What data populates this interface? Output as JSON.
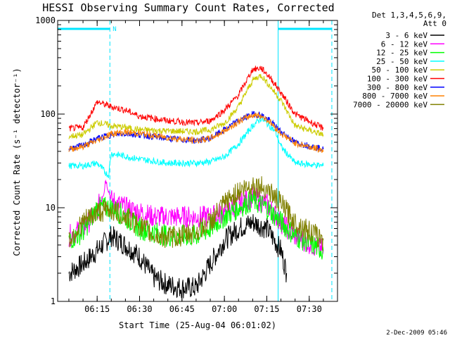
{
  "chart_data": {
    "type": "line",
    "title": "HESSI Observing Summary Count Rates, Corrected",
    "xlabel": "Start Time (25-Aug-04 06:01:02)",
    "ylabel": "Corrected Count Rate (s⁻¹ detector⁻¹)",
    "y_scale": "log",
    "ylim": [
      1,
      1000
    ],
    "xlim": [
      "06:01:02",
      "07:40:00"
    ],
    "x_ticks": [
      "06:15",
      "06:30",
      "06:45",
      "07:00",
      "07:15",
      "07:30"
    ],
    "y_ticks": [
      "1",
      "10",
      "100",
      "1000"
    ],
    "grid": false,
    "legend_position": "right-top",
    "legend_header": [
      "Det 1,3,4,5,6,9,",
      "Att 0"
    ],
    "night_marker": "N",
    "markers": {
      "saa_bar_before": [
        "06:01:02",
        "06:19:30"
      ],
      "saa_bar_after": [
        "07:19:00",
        "07:38:00"
      ],
      "dashed_lines": [
        "06:19:30",
        "07:38:00"
      ],
      "solid_lines": [
        "06:01:02",
        "07:19:00"
      ]
    },
    "series": [
      {
        "name": "3 - 6 keV",
        "color": "#000000",
        "points": [
          [
            "06:05",
            2
          ],
          [
            "06:10",
            2.5
          ],
          [
            "06:15",
            3.5
          ],
          [
            "06:20",
            5
          ],
          [
            "06:25",
            4
          ],
          [
            "06:30",
            3
          ],
          [
            "06:35",
            1.8
          ],
          [
            "06:40",
            1.5
          ],
          [
            "06:45",
            1.4
          ],
          [
            "06:50",
            1.4
          ],
          [
            "06:55",
            2.5
          ],
          [
            "07:00",
            4.5
          ],
          [
            "07:05",
            6
          ],
          [
            "07:10",
            7
          ],
          [
            "07:15",
            6
          ],
          [
            "07:20",
            3.5
          ],
          [
            "07:22",
            2
          ]
        ]
      },
      {
        "name": "6 - 12 keV",
        "color": "#ff00ff",
        "points": [
          [
            "06:05",
            5
          ],
          [
            "06:10",
            6
          ],
          [
            "06:15",
            9
          ],
          [
            "06:18",
            20
          ],
          [
            "06:20",
            12
          ],
          [
            "06:25",
            10
          ],
          [
            "06:30",
            9
          ],
          [
            "06:35",
            8
          ],
          [
            "06:40",
            8
          ],
          [
            "06:45",
            8
          ],
          [
            "06:50",
            8
          ],
          [
            "06:55",
            8
          ],
          [
            "07:00",
            9
          ],
          [
            "07:05",
            11
          ],
          [
            "07:10",
            13
          ],
          [
            "07:15",
            11
          ],
          [
            "07:20",
            7
          ],
          [
            "07:25",
            5
          ],
          [
            "07:35",
            3.5
          ]
        ]
      },
      {
        "name": "12 - 25 keV",
        "color": "#00ff00",
        "points": [
          [
            "06:05",
            4.5
          ],
          [
            "06:10",
            5.5
          ],
          [
            "06:15",
            10
          ],
          [
            "06:20",
            10
          ],
          [
            "06:25",
            8
          ],
          [
            "06:30",
            6
          ],
          [
            "06:35",
            5.5
          ],
          [
            "06:40",
            5
          ],
          [
            "06:45",
            5
          ],
          [
            "06:50",
            5
          ],
          [
            "06:55",
            6
          ],
          [
            "07:00",
            8
          ],
          [
            "07:05",
            10
          ],
          [
            "07:10",
            12
          ],
          [
            "07:15",
            10
          ],
          [
            "07:20",
            7
          ],
          [
            "07:25",
            5
          ],
          [
            "07:35",
            3.5
          ]
        ]
      },
      {
        "name": "25 - 50 keV",
        "color": "#00ffff",
        "points": [
          [
            "06:05",
            28
          ],
          [
            "06:10",
            28
          ],
          [
            "06:15",
            30
          ],
          [
            "06:19",
            22
          ],
          [
            "06:20",
            38
          ],
          [
            "06:30",
            33
          ],
          [
            "06:40",
            30
          ],
          [
            "06:50",
            30
          ],
          [
            "06:55",
            31
          ],
          [
            "07:00",
            35
          ],
          [
            "07:05",
            48
          ],
          [
            "07:10",
            75
          ],
          [
            "07:13",
            90
          ],
          [
            "07:16",
            75
          ],
          [
            "07:18",
            65
          ],
          [
            "07:20",
            45
          ],
          [
            "07:25",
            30
          ],
          [
            "07:35",
            28
          ]
        ]
      },
      {
        "name": "50 - 100 keV",
        "color": "#cccc00",
        "points": [
          [
            "06:05",
            58
          ],
          [
            "06:10",
            60
          ],
          [
            "06:15",
            82
          ],
          [
            "06:20",
            75
          ],
          [
            "06:25",
            72
          ],
          [
            "06:30",
            68
          ],
          [
            "06:40",
            66
          ],
          [
            "06:50",
            65
          ],
          [
            "06:55",
            68
          ],
          [
            "07:00",
            80
          ],
          [
            "07:05",
            120
          ],
          [
            "07:10",
            230
          ],
          [
            "07:13",
            260
          ],
          [
            "07:16",
            200
          ],
          [
            "07:20",
            140
          ],
          [
            "07:25",
            75
          ],
          [
            "07:35",
            60
          ]
        ]
      },
      {
        "name": "100 - 300 keV",
        "color": "#ff0000",
        "points": [
          [
            "06:05",
            70
          ],
          [
            "06:10",
            72
          ],
          [
            "06:15",
            135
          ],
          [
            "06:20",
            120
          ],
          [
            "06:25",
            110
          ],
          [
            "06:30",
            95
          ],
          [
            "06:40",
            85
          ],
          [
            "06:50",
            80
          ],
          [
            "06:55",
            85
          ],
          [
            "07:00",
            110
          ],
          [
            "07:05",
            160
          ],
          [
            "07:10",
            300
          ],
          [
            "07:13",
            310
          ],
          [
            "07:16",
            250
          ],
          [
            "07:20",
            170
          ],
          [
            "07:25",
            100
          ],
          [
            "07:35",
            70
          ]
        ]
      },
      {
        "name": "300 - 800 keV",
        "color": "#0000ff",
        "points": [
          [
            "06:05",
            43
          ],
          [
            "06:10",
            46
          ],
          [
            "06:15",
            55
          ],
          [
            "06:20",
            60
          ],
          [
            "06:25",
            62
          ],
          [
            "06:30",
            60
          ],
          [
            "06:40",
            55
          ],
          [
            "06:50",
            52
          ],
          [
            "06:55",
            55
          ],
          [
            "07:00",
            68
          ],
          [
            "07:05",
            85
          ],
          [
            "07:10",
            100
          ],
          [
            "07:13",
            98
          ],
          [
            "07:16",
            85
          ],
          [
            "07:20",
            65
          ],
          [
            "07:25",
            50
          ],
          [
            "07:35",
            42
          ]
        ]
      },
      {
        "name": "800 - 7000 keV",
        "color": "#ff8000",
        "points": [
          [
            "06:05",
            42
          ],
          [
            "06:10",
            45
          ],
          [
            "06:15",
            52
          ],
          [
            "06:20",
            62
          ],
          [
            "06:25",
            64
          ],
          [
            "06:30",
            62
          ],
          [
            "06:40",
            56
          ],
          [
            "06:50",
            52
          ],
          [
            "06:55",
            55
          ],
          [
            "07:00",
            66
          ],
          [
            "07:05",
            83
          ],
          [
            "07:10",
            98
          ],
          [
            "07:13",
            96
          ],
          [
            "07:16",
            83
          ],
          [
            "07:20",
            62
          ],
          [
            "07:25",
            49
          ],
          [
            "07:35",
            41
          ]
        ]
      },
      {
        "name": "7000 - 20000 keV",
        "color": "#808000",
        "points": [
          [
            "06:05",
            4.5
          ],
          [
            "06:10",
            7
          ],
          [
            "06:15",
            9
          ],
          [
            "06:20",
            9.5
          ],
          [
            "06:25",
            8
          ],
          [
            "06:30",
            6.5
          ],
          [
            "06:35",
            5
          ],
          [
            "06:40",
            4.8
          ],
          [
            "06:45",
            5
          ],
          [
            "06:50",
            5.5
          ],
          [
            "06:55",
            7
          ],
          [
            "07:00",
            11
          ],
          [
            "07:05",
            15
          ],
          [
            "07:10",
            17.5
          ],
          [
            "07:15",
            16
          ],
          [
            "07:20",
            11
          ],
          [
            "07:25",
            7
          ],
          [
            "07:35",
            4.5
          ]
        ]
      }
    ]
  },
  "footer": {
    "timestamp": "2-Dec-2009 05:46"
  }
}
